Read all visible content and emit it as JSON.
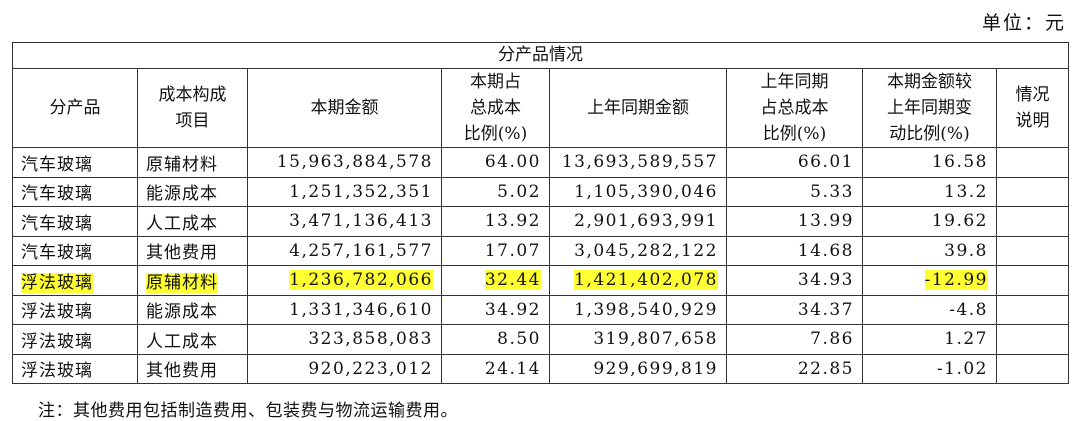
{
  "unit": "单位：元",
  "table": {
    "title": "分产品情况",
    "columns": [
      "分产品",
      "成本构成\n项目",
      "本期金额",
      "本期占\n总成本\n比例(%)",
      "上年同期金额",
      "上年同期\n占总成本\n比例(%)",
      "本期金额较\n上年同期变\n动比例(%)",
      "情况\n说明"
    ],
    "rows": [
      [
        "汽车玻璃",
        "原辅材料",
        "15,963,884,578",
        "64.00",
        "13,693,589,557",
        "66.01",
        "16.58",
        ""
      ],
      [
        "汽车玻璃",
        "能源成本",
        "1,251,352,351",
        "5.02",
        "1,105,390,046",
        "5.33",
        "13.2",
        ""
      ],
      [
        "汽车玻璃",
        "人工成本",
        "3,471,136,413",
        "13.92",
        "2,901,693,991",
        "13.99",
        "19.62",
        ""
      ],
      [
        "汽车玻璃",
        "其他费用",
        "4,257,161,577",
        "17.07",
        "3,045,282,122",
        "14.68",
        "39.8",
        ""
      ],
      [
        "浮法玻璃",
        "原辅材料",
        "1,236,782,066",
        "32.44",
        "1,421,402,078",
        "34.93",
        "-12.99",
        ""
      ],
      [
        "浮法玻璃",
        "能源成本",
        "1,331,346,610",
        "34.92",
        "1,398,540,929",
        "34.37",
        "-4.8",
        ""
      ],
      [
        "浮法玻璃",
        "人工成本",
        "323,858,083",
        "8.50",
        "319,807,658",
        "7.86",
        "1.27",
        ""
      ],
      [
        "浮法玻璃",
        "其他费用",
        "920,223,012",
        "24.14",
        "929,699,819",
        "22.85",
        "-1.02",
        ""
      ]
    ],
    "highlight": {
      "row": 4,
      "columns": [
        0,
        1,
        2,
        3,
        4,
        6
      ]
    }
  },
  "note": "注：其他费用包括制造费用、包装费与物流运输费用。"
}
